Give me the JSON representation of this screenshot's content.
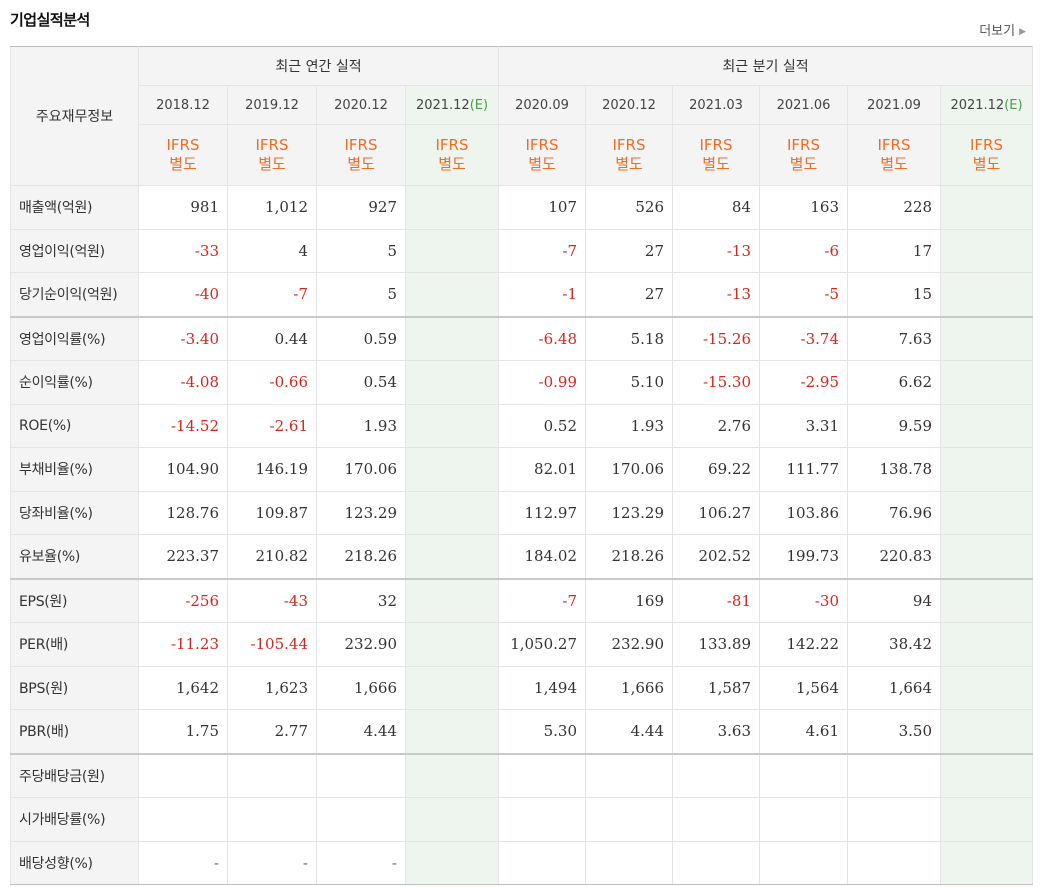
{
  "header": {
    "title": "기업실적분석",
    "more_label": "더보기"
  },
  "table": {
    "corner_label": "주요재무정보",
    "annual_title": "최근 연간 실적",
    "quarter_title": "최근 분기 실적",
    "annual_periods": [
      {
        "year": "2018.12",
        "est": ""
      },
      {
        "year": "2019.12",
        "est": ""
      },
      {
        "year": "2020.12",
        "est": ""
      },
      {
        "year": "2021.12",
        "est": "(E)"
      }
    ],
    "quarter_periods": [
      {
        "year": "2020.09",
        "est": ""
      },
      {
        "year": "2020.12",
        "est": ""
      },
      {
        "year": "2021.03",
        "est": ""
      },
      {
        "year": "2021.06",
        "est": ""
      },
      {
        "year": "2021.09",
        "est": ""
      },
      {
        "year": "2021.12",
        "est": "(E)"
      }
    ],
    "ifrs_line1": "IFRS",
    "ifrs_line2": "별도",
    "rows": [
      {
        "label": "매출액(억원)",
        "group": 0,
        "annual": [
          "981",
          "1,012",
          "927",
          ""
        ],
        "quarter": [
          "107",
          "526",
          "84",
          "163",
          "228",
          ""
        ]
      },
      {
        "label": "영업이익(억원)",
        "group": 0,
        "annual": [
          "-33",
          "4",
          "5",
          ""
        ],
        "quarter": [
          "-7",
          "27",
          "-13",
          "-6",
          "17",
          ""
        ]
      },
      {
        "label": "당기순이익(억원)",
        "group": 0,
        "annual": [
          "-40",
          "-7",
          "5",
          ""
        ],
        "quarter": [
          "-1",
          "27",
          "-13",
          "-5",
          "15",
          ""
        ]
      },
      {
        "label": "영업이익률(%)",
        "group": 1,
        "annual": [
          "-3.40",
          "0.44",
          "0.59",
          ""
        ],
        "quarter": [
          "-6.48",
          "5.18",
          "-15.26",
          "-3.74",
          "7.63",
          ""
        ]
      },
      {
        "label": "순이익률(%)",
        "group": 1,
        "annual": [
          "-4.08",
          "-0.66",
          "0.54",
          ""
        ],
        "quarter": [
          "-0.99",
          "5.10",
          "-15.30",
          "-2.95",
          "6.62",
          ""
        ]
      },
      {
        "label": "ROE(%)",
        "group": 1,
        "annual": [
          "-14.52",
          "-2.61",
          "1.93",
          ""
        ],
        "quarter": [
          "0.52",
          "1.93",
          "2.76",
          "3.31",
          "9.59",
          ""
        ]
      },
      {
        "label": "부채비율(%)",
        "group": 1,
        "annual": [
          "104.90",
          "146.19",
          "170.06",
          ""
        ],
        "quarter": [
          "82.01",
          "170.06",
          "69.22",
          "111.77",
          "138.78",
          ""
        ]
      },
      {
        "label": "당좌비율(%)",
        "group": 1,
        "annual": [
          "128.76",
          "109.87",
          "123.29",
          ""
        ],
        "quarter": [
          "112.97",
          "123.29",
          "106.27",
          "103.86",
          "76.96",
          ""
        ]
      },
      {
        "label": "유보율(%)",
        "group": 1,
        "annual": [
          "223.37",
          "210.82",
          "218.26",
          ""
        ],
        "quarter": [
          "184.02",
          "218.26",
          "202.52",
          "199.73",
          "220.83",
          ""
        ]
      },
      {
        "label": "EPS(원)",
        "group": 2,
        "annual": [
          "-256",
          "-43",
          "32",
          ""
        ],
        "quarter": [
          "-7",
          "169",
          "-81",
          "-30",
          "94",
          ""
        ]
      },
      {
        "label": "PER(배)",
        "group": 2,
        "annual": [
          "-11.23",
          "-105.44",
          "232.90",
          ""
        ],
        "quarter": [
          "1,050.27",
          "232.90",
          "133.89",
          "142.22",
          "38.42",
          ""
        ]
      },
      {
        "label": "BPS(원)",
        "group": 2,
        "annual": [
          "1,642",
          "1,623",
          "1,666",
          ""
        ],
        "quarter": [
          "1,494",
          "1,666",
          "1,587",
          "1,564",
          "1,664",
          ""
        ]
      },
      {
        "label": "PBR(배)",
        "group": 2,
        "annual": [
          "1.75",
          "2.77",
          "4.44",
          ""
        ],
        "quarter": [
          "5.30",
          "4.44",
          "3.63",
          "4.61",
          "3.50",
          ""
        ]
      },
      {
        "label": "주당배당금(원)",
        "group": 3,
        "annual": [
          "",
          "",
          "",
          ""
        ],
        "quarter": [
          "",
          "",
          "",
          "",
          "",
          ""
        ]
      },
      {
        "label": "시가배당률(%)",
        "group": 3,
        "annual": [
          "",
          "",
          "",
          ""
        ],
        "quarter": [
          "",
          "",
          "",
          "",
          "",
          ""
        ]
      },
      {
        "label": "배당성향(%)",
        "group": 3,
        "annual": [
          "-",
          "-",
          "-",
          ""
        ],
        "quarter": [
          "",
          "",
          "",
          "",
          "",
          ""
        ]
      }
    ]
  }
}
